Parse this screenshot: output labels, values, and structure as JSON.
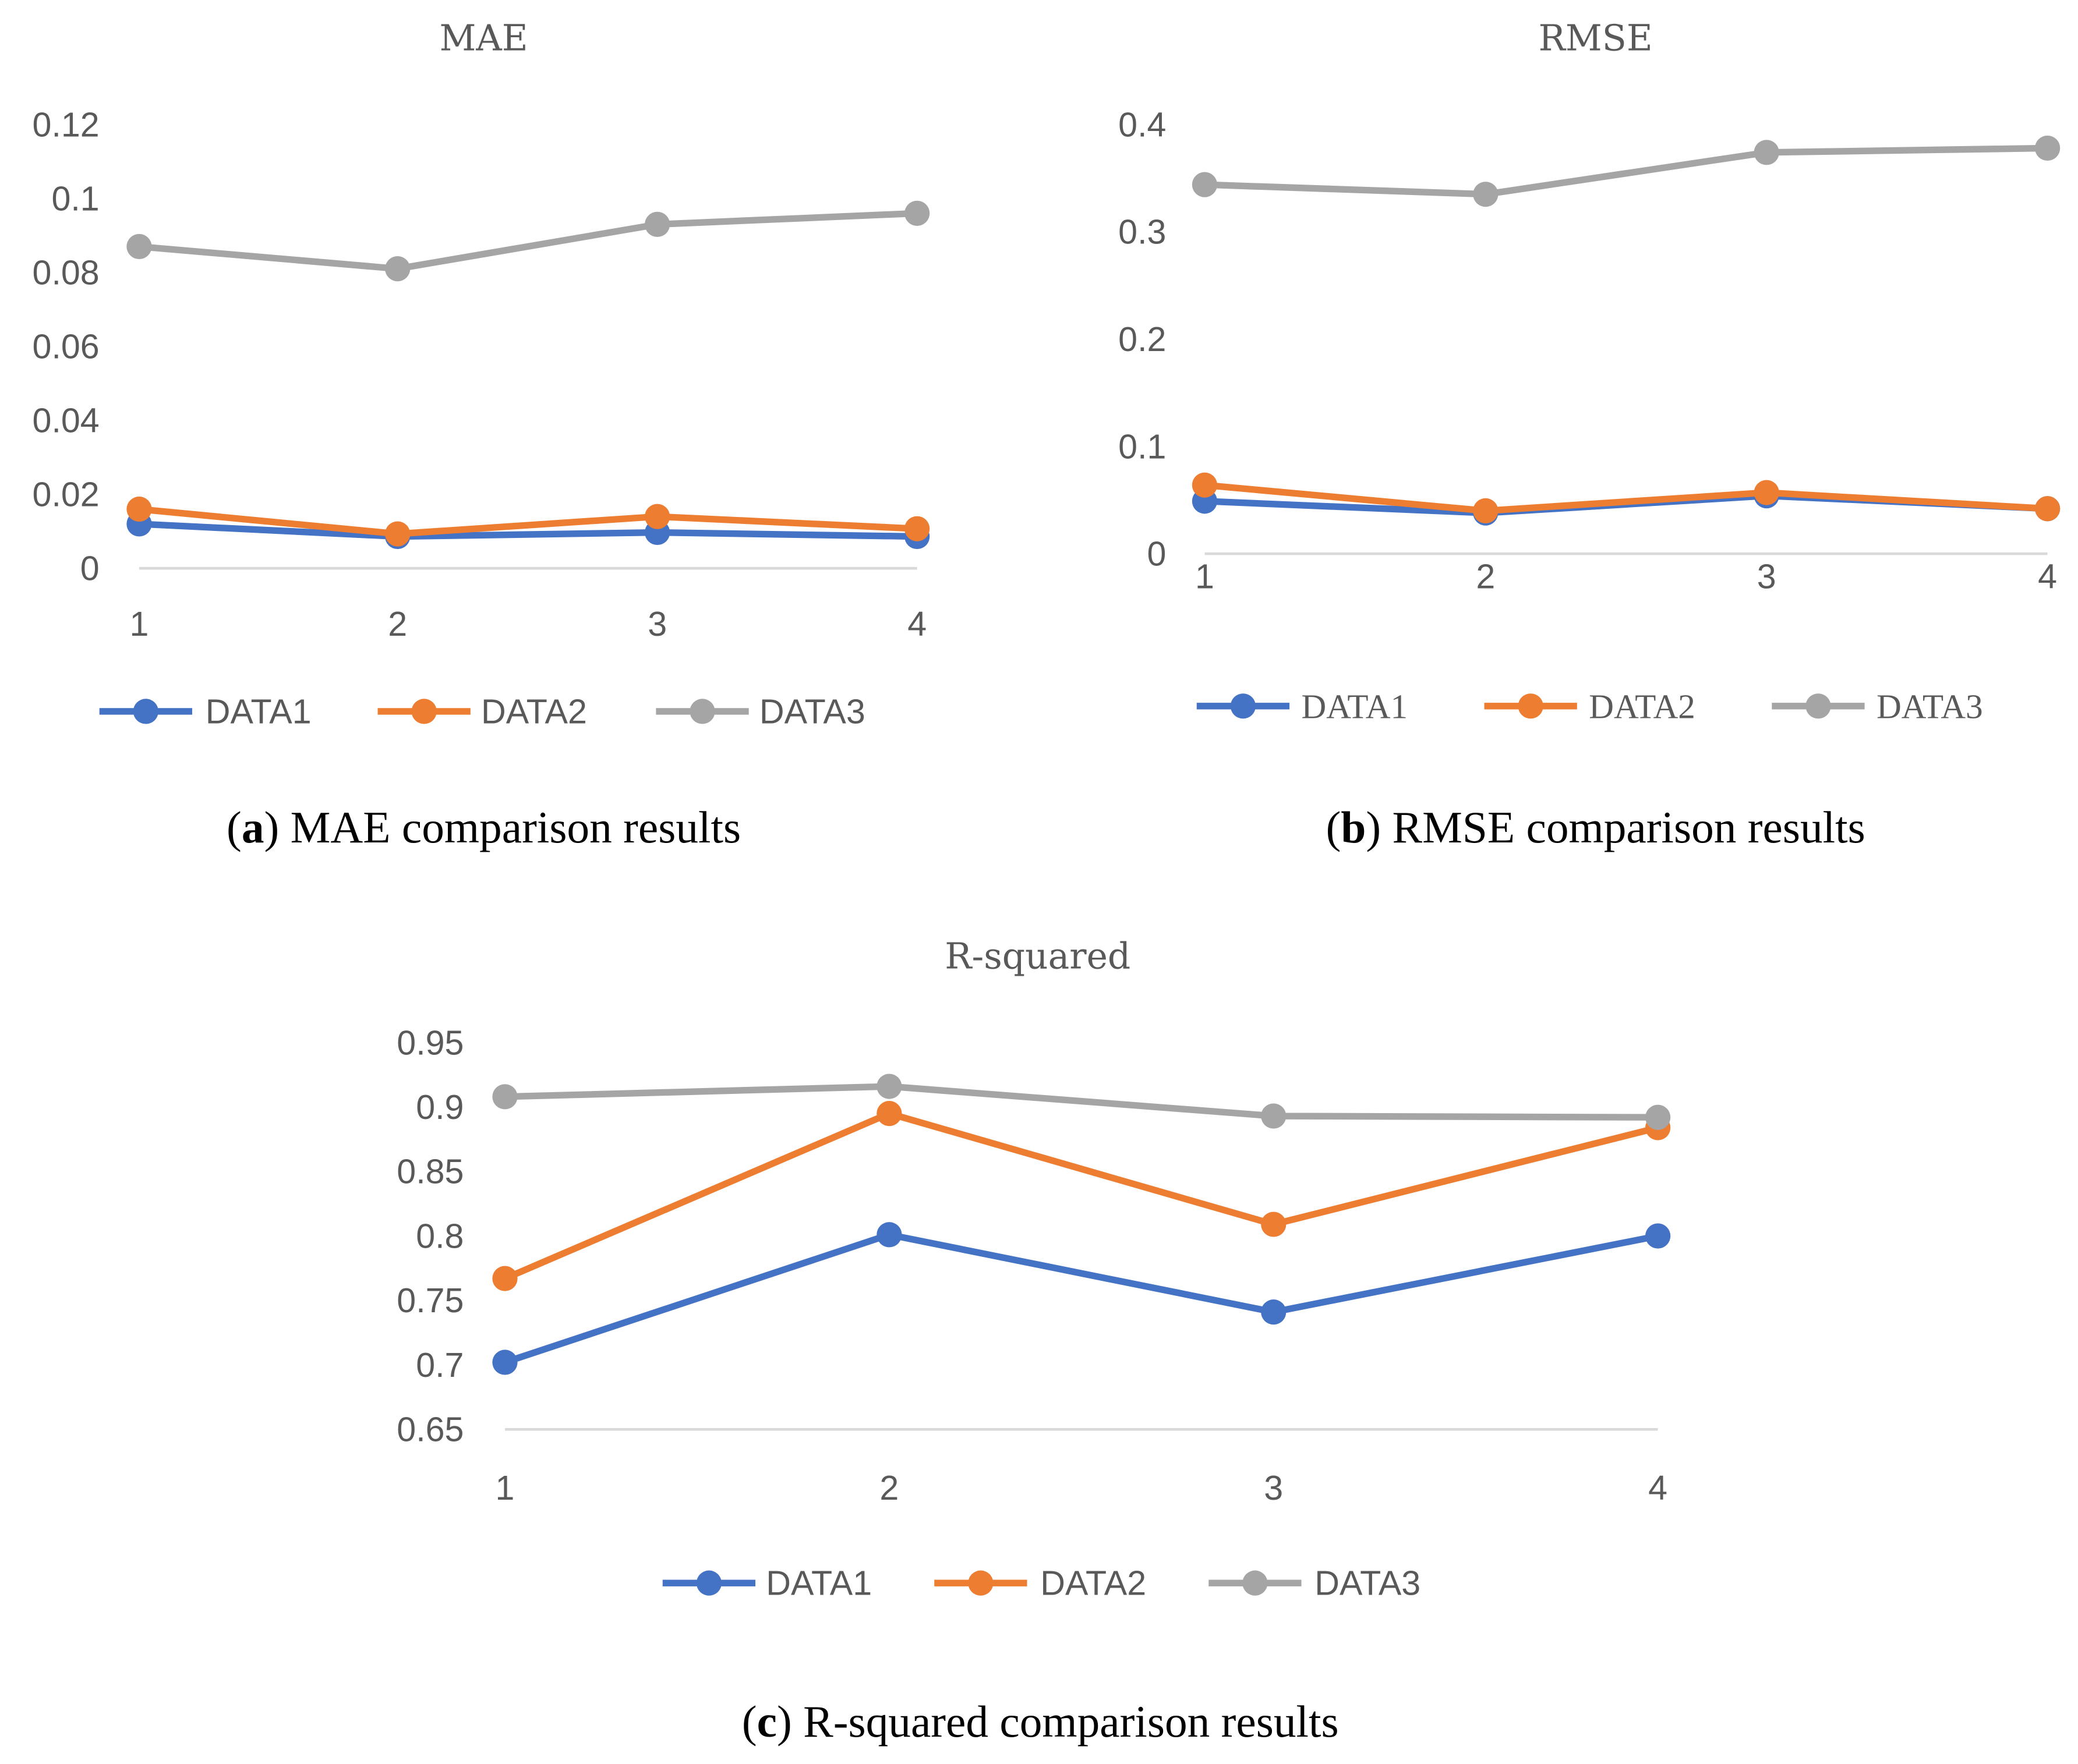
{
  "colors": {
    "DATA1": "#4472C4",
    "DATA2": "#ED7D31",
    "DATA3": "#A5A5A5",
    "axis": "#D9D9D9"
  },
  "chart_data": [
    {
      "type": "line",
      "title": "MAE",
      "caption_letter": "a",
      "caption_text": " MAE comparison results",
      "x": [
        1,
        2,
        3,
        4
      ],
      "x_tick_labels": [
        "1",
        "2",
        "3",
        "4"
      ],
      "ylim": [
        0,
        0.12
      ],
      "y_ticks": [
        0,
        0.02,
        0.04,
        0.06,
        0.08,
        0.1,
        0.12
      ],
      "y_tick_labels": [
        "0",
        "0.02",
        "0.04",
        "0.06",
        "0.08",
        "0.1",
        "0.12"
      ],
      "legend_position": "bottom",
      "series": [
        {
          "name": "DATA1",
          "values": [
            0.012,
            0.0086,
            0.0097,
            0.0086
          ]
        },
        {
          "name": "DATA2",
          "values": [
            0.016,
            0.0093,
            0.014,
            0.0107
          ]
        },
        {
          "name": "DATA3",
          "values": [
            0.087,
            0.081,
            0.093,
            0.096
          ]
        }
      ]
    },
    {
      "type": "line",
      "title": "RMSE",
      "caption_letter": "b",
      "caption_text": " RMSE comparison results",
      "x": [
        1,
        2,
        3,
        4
      ],
      "x_tick_labels": [
        "1",
        "2",
        "3",
        "4"
      ],
      "ylim": [
        0,
        0.4
      ],
      "y_ticks": [
        0,
        0.1,
        0.2,
        0.3,
        0.4
      ],
      "y_tick_labels": [
        "0",
        "0.1",
        "0.2",
        "0.3",
        "0.4"
      ],
      "legend_position": "bottom",
      "series": [
        {
          "name": "DATA1",
          "values": [
            0.049,
            0.038,
            0.054,
            0.042
          ]
        },
        {
          "name": "DATA2",
          "values": [
            0.064,
            0.04,
            0.057,
            0.042
          ]
        },
        {
          "name": "DATA3",
          "values": [
            0.344,
            0.335,
            0.374,
            0.378
          ]
        }
      ]
    },
    {
      "type": "line",
      "title": "R-squared",
      "caption_letter": "c",
      "caption_text": " R-squared comparison results",
      "x": [
        1,
        2,
        3,
        4
      ],
      "x_tick_labels": [
        "1",
        "2",
        "3",
        "4"
      ],
      "ylim": [
        0.65,
        0.95
      ],
      "y_ticks": [
        0.65,
        0.7,
        0.75,
        0.8,
        0.85,
        0.9,
        0.95
      ],
      "y_tick_labels": [
        "0.65",
        "0.7",
        "0.75",
        "0.8",
        "0.85",
        "0.9",
        "0.95"
      ],
      "legend_position": "bottom",
      "series": [
        {
          "name": "DATA1",
          "values": [
            0.702,
            0.801,
            0.741,
            0.8
          ]
        },
        {
          "name": "DATA2",
          "values": [
            0.767,
            0.895,
            0.809,
            0.884
          ]
        },
        {
          "name": "DATA3",
          "values": [
            0.908,
            0.916,
            0.893,
            0.892
          ]
        }
      ]
    }
  ]
}
